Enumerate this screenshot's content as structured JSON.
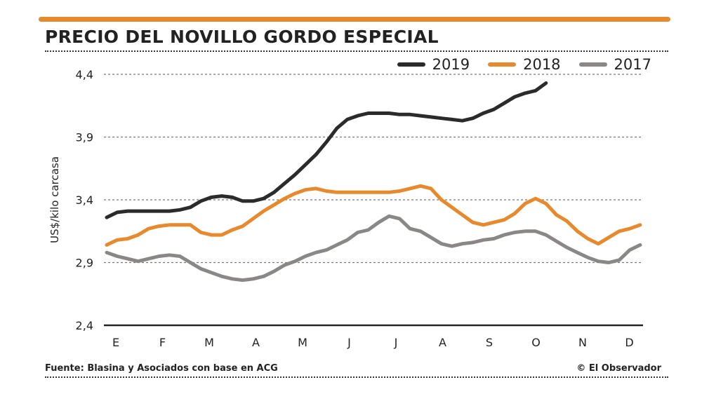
{
  "title": "PRECIO DEL NOVILLO GORDO ESPECIAL",
  "source": "Fuente: Blasina y Asociados con base en ACG",
  "credit": "© El Observador",
  "colors": {
    "accent": "#e8892b",
    "2019": "#2b2b2d",
    "2018": "#e8892b",
    "2017": "#8c8787"
  },
  "chart_data": {
    "type": "line",
    "title": "PRECIO DEL NOVILLO GORDO ESPECIAL",
    "xlabel": "",
    "ylabel": "US$/kilo carcasa",
    "ylim": [
      2.4,
      4.4
    ],
    "yticks": [
      "2,4",
      "2,9",
      "3,4",
      "3,9",
      "4,4"
    ],
    "ytick_values": [
      2.4,
      2.9,
      3.4,
      3.9,
      4.4
    ],
    "xtick_labels": [
      "E",
      "F",
      "M",
      "A",
      "M",
      "J",
      "J",
      "A",
      "S",
      "O",
      "N",
      "D"
    ],
    "x_unit": "week",
    "grid": "horizontal dotted",
    "legend": "top-right",
    "series": [
      {
        "name": "2019",
        "values": [
          3.26,
          3.3,
          3.31,
          3.31,
          3.31,
          3.31,
          3.31,
          3.32,
          3.34,
          3.39,
          3.42,
          3.43,
          3.42,
          3.39,
          3.39,
          3.41,
          3.46,
          3.53,
          3.6,
          3.68,
          3.76,
          3.86,
          3.97,
          4.04,
          4.07,
          4.09,
          4.09,
          4.09,
          4.08,
          4.08,
          4.07,
          4.06,
          4.05,
          4.04,
          4.03,
          4.05,
          4.09,
          4.12,
          4.17,
          4.22,
          4.25,
          4.27,
          4.33
        ]
      },
      {
        "name": "2018",
        "values": [
          3.04,
          3.08,
          3.09,
          3.12,
          3.17,
          3.19,
          3.2,
          3.2,
          3.2,
          3.14,
          3.12,
          3.12,
          3.16,
          3.19,
          3.25,
          3.31,
          3.36,
          3.41,
          3.45,
          3.48,
          3.49,
          3.47,
          3.46,
          3.46,
          3.46,
          3.46,
          3.46,
          3.46,
          3.47,
          3.49,
          3.51,
          3.49,
          3.4,
          3.34,
          3.28,
          3.22,
          3.2,
          3.22,
          3.24,
          3.29,
          3.37,
          3.41,
          3.37,
          3.28,
          3.23,
          3.15,
          3.09,
          3.05,
          3.1,
          3.15,
          3.17,
          3.2
        ]
      },
      {
        "name": "2017",
        "values": [
          2.98,
          2.95,
          2.93,
          2.91,
          2.93,
          2.95,
          2.96,
          2.95,
          2.9,
          2.85,
          2.82,
          2.79,
          2.77,
          2.76,
          2.77,
          2.79,
          2.83,
          2.88,
          2.91,
          2.95,
          2.98,
          3.0,
          3.04,
          3.08,
          3.14,
          3.16,
          3.22,
          3.27,
          3.25,
          3.17,
          3.15,
          3.1,
          3.05,
          3.03,
          3.05,
          3.06,
          3.08,
          3.09,
          3.12,
          3.14,
          3.15,
          3.15,
          3.12,
          3.07,
          3.02,
          2.98,
          2.94,
          2.91,
          2.9,
          2.92,
          3.0,
          3.04
        ]
      }
    ]
  }
}
